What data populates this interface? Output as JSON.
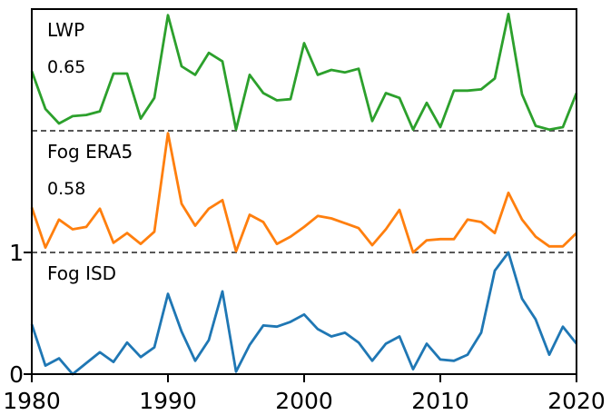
{
  "figure": {
    "background": "#ffffff",
    "axis_color": "#000000",
    "separator_color": "#404040",
    "annotation_color": "#d62728"
  },
  "chart_data": {
    "type": "line",
    "title": "",
    "xlabel": "",
    "ylabel": "",
    "grid": false,
    "legend_position": "labels-inside-panels-top-left",
    "xlim": [
      1980,
      2020
    ],
    "ylim": [
      0,
      3
    ],
    "xtick_values": [
      1980,
      1990,
      2000,
      2010,
      2020
    ],
    "xtick_labels": [
      "1980",
      "1990",
      "2000",
      "2010",
      "2020"
    ],
    "ytick_values": [
      0,
      1
    ],
    "ytick_labels": [
      "0",
      "1"
    ],
    "separator_values": [
      1,
      2
    ],
    "separator_style": "dashed",
    "x": [
      1980,
      1981,
      1982,
      1983,
      1984,
      1985,
      1986,
      1987,
      1988,
      1989,
      1990,
      1991,
      1992,
      1993,
      1994,
      1995,
      1996,
      1997,
      1998,
      1999,
      2000,
      2001,
      2002,
      2003,
      2004,
      2005,
      2006,
      2007,
      2008,
      2009,
      2010,
      2011,
      2012,
      2013,
      2014,
      2015,
      2016,
      2017,
      2018,
      2019,
      2020
    ],
    "series": [
      {
        "name": "LWP",
        "annotation": "0.65",
        "color": "#2ca02c",
        "offset": 2,
        "values": [
          0.49,
          0.18,
          0.06,
          0.12,
          0.13,
          0.16,
          0.47,
          0.47,
          0.1,
          0.27,
          0.95,
          0.53,
          0.46,
          0.64,
          0.57,
          0.01,
          0.46,
          0.31,
          0.25,
          0.26,
          0.72,
          0.46,
          0.5,
          0.48,
          0.51,
          0.08,
          0.31,
          0.27,
          0.01,
          0.23,
          0.03,
          0.33,
          0.33,
          0.34,
          0.43,
          0.96,
          0.3,
          0.04,
          0.01,
          0.03,
          0.31
        ]
      },
      {
        "name": "Fog ERA5",
        "annotation": "0.58",
        "color": "#ff7f0e",
        "offset": 1,
        "values": [
          0.37,
          0.04,
          0.27,
          0.19,
          0.21,
          0.36,
          0.08,
          0.16,
          0.07,
          0.17,
          0.98,
          0.4,
          0.22,
          0.36,
          0.43,
          0.01,
          0.31,
          0.25,
          0.07,
          0.13,
          0.21,
          0.3,
          0.28,
          0.24,
          0.2,
          0.06,
          0.19,
          0.35,
          0.0,
          0.1,
          0.11,
          0.11,
          0.27,
          0.25,
          0.16,
          0.49,
          0.27,
          0.13,
          0.05,
          0.05,
          0.16
        ]
      },
      {
        "name": "Fog ISD",
        "annotation": null,
        "color": "#1f77b4",
        "offset": 0,
        "values": [
          0.41,
          0.07,
          0.13,
          0.0,
          0.09,
          0.18,
          0.1,
          0.26,
          0.14,
          0.22,
          0.66,
          0.35,
          0.11,
          0.28,
          0.68,
          0.02,
          0.24,
          0.4,
          0.39,
          0.43,
          0.49,
          0.37,
          0.31,
          0.34,
          0.26,
          0.11,
          0.25,
          0.31,
          0.04,
          0.25,
          0.12,
          0.11,
          0.16,
          0.34,
          0.85,
          1.0,
          0.62,
          0.45,
          0.16,
          0.39,
          0.25
        ]
      }
    ]
  }
}
